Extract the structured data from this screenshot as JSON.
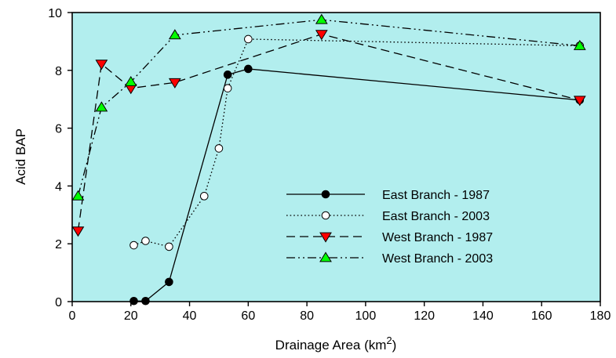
{
  "chart_data": {
    "type": "line",
    "xlabel": "Drainage Area (km",
    "xlabel_sup": "2",
    "xlabel_end": ")",
    "ylabel": "Acid BAP",
    "xlim": [
      0,
      180
    ],
    "ylim": [
      0,
      10
    ],
    "xticks": [
      "0",
      "20",
      "40",
      "60",
      "80",
      "100",
      "120",
      "140",
      "160",
      "180"
    ],
    "yticks": [
      "0",
      "2",
      "4",
      "6",
      "8",
      "10"
    ],
    "background": "#b2eeee",
    "grid": false,
    "legend_position": "center-right",
    "series": [
      {
        "name": "East Branch - 1987",
        "line": "solid",
        "marker": "circle",
        "marker_fill": "#000000",
        "points": [
          [
            21,
            0.02
          ],
          [
            25,
            0.02
          ],
          [
            33,
            0.68
          ],
          [
            53,
            7.85
          ],
          [
            60,
            8.05
          ],
          [
            173,
            6.97
          ]
        ]
      },
      {
        "name": "East Branch - 2003",
        "line": "dotted",
        "marker": "circle",
        "marker_fill": "#ffffff",
        "points": [
          [
            21,
            1.95
          ],
          [
            25,
            2.1
          ],
          [
            33,
            1.9
          ],
          [
            45,
            3.65
          ],
          [
            50,
            5.3
          ],
          [
            53,
            7.38
          ],
          [
            60,
            9.08
          ],
          [
            173,
            8.85
          ]
        ]
      },
      {
        "name": "West Branch - 1987",
        "line": "dashed",
        "marker": "triangle-down",
        "marker_fill": "#ff0000",
        "points": [
          [
            2,
            2.45
          ],
          [
            10,
            8.22
          ],
          [
            20,
            7.38
          ],
          [
            35,
            7.58
          ],
          [
            85,
            9.25
          ],
          [
            173,
            6.97
          ]
        ]
      },
      {
        "name": "West Branch - 2003",
        "line": "dash-dot-dot",
        "marker": "triangle-up",
        "marker_fill": "#00ff00",
        "points": [
          [
            2,
            3.65
          ],
          [
            10,
            6.72
          ],
          [
            20,
            7.6
          ],
          [
            35,
            9.22
          ],
          [
            85,
            9.75
          ],
          [
            173,
            8.85
          ]
        ]
      }
    ]
  }
}
